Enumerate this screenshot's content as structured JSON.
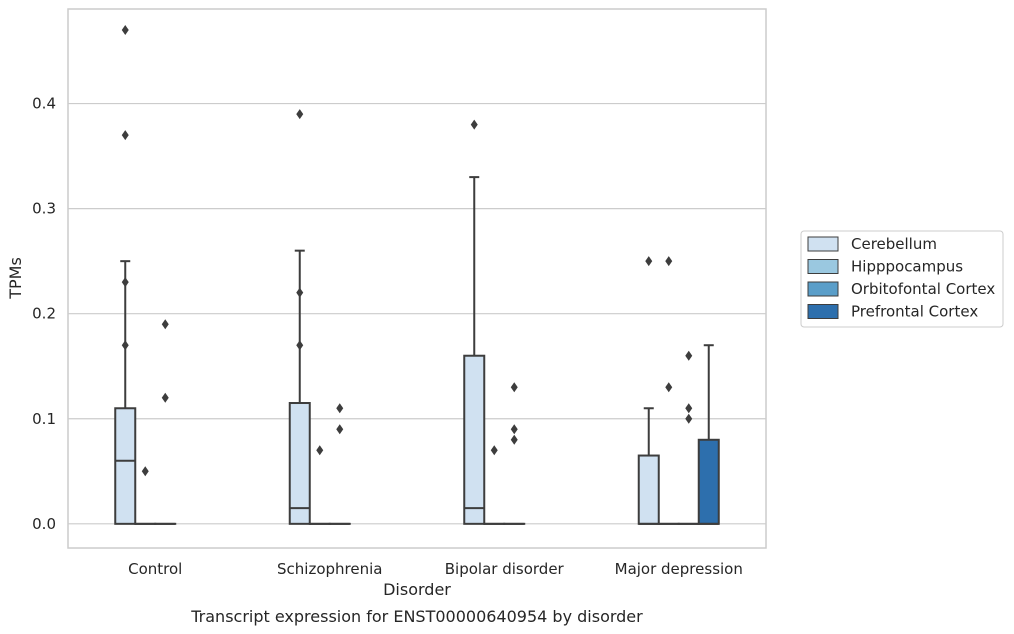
{
  "caption": "Transcript expression for ENST00000640954 by disorder",
  "chart_data": {
    "type": "boxplot",
    "xlabel": "Disorder",
    "ylabel": "TPMs",
    "categories": [
      "Control",
      "Schizophrenia",
      "Bipolar disorder",
      "Major depression"
    ],
    "ylim": [
      -0.023,
      0.49
    ],
    "yticks": [
      0.0,
      0.1,
      0.2,
      0.3,
      0.4
    ],
    "ytick_labels": [
      "0.0",
      "0.1",
      "0.2",
      "0.3",
      "0.4"
    ],
    "grid": "horizontal",
    "legend_position": "right",
    "series": [
      {
        "name": "Cerebellum",
        "color": "#d0e1f1",
        "boxes": [
          {
            "q1": 0,
            "median": 0.06,
            "q3": 0.11,
            "whisker_low": 0,
            "whisker_high": 0.25,
            "outliers": [
              0.47,
              0.37,
              0.23,
              0.17
            ]
          },
          {
            "q1": 0,
            "median": 0.015,
            "q3": 0.115,
            "whisker_low": 0,
            "whisker_high": 0.26,
            "outliers": [
              0.39,
              0.22,
              0.17
            ]
          },
          {
            "q1": 0,
            "median": 0.015,
            "q3": 0.16,
            "whisker_low": 0,
            "whisker_high": 0.33,
            "outliers": [
              0.38
            ]
          },
          {
            "q1": 0,
            "median": 0,
            "q3": 0.065,
            "whisker_low": 0,
            "whisker_high": 0.11,
            "outliers": [
              0.25
            ]
          }
        ]
      },
      {
        "name": "Hipppocampus",
        "color": "#9ac8e0",
        "boxes": [
          {
            "q1": 0,
            "median": 0,
            "q3": 0,
            "whisker_low": 0,
            "whisker_high": 0,
            "outliers": [
              0.05
            ]
          },
          {
            "q1": 0,
            "median": 0,
            "q3": 0,
            "whisker_low": 0,
            "whisker_high": 0,
            "outliers": [
              0.07
            ]
          },
          {
            "q1": 0,
            "median": 0,
            "q3": 0,
            "whisker_low": 0,
            "whisker_high": 0,
            "outliers": [
              0.07
            ]
          },
          {
            "q1": 0,
            "median": 0,
            "q3": 0,
            "whisker_low": 0,
            "whisker_high": 0,
            "outliers": [
              0.25,
              0.13
            ]
          }
        ]
      },
      {
        "name": "Orbitofontal Cortex",
        "color": "#5a9ec9",
        "boxes": [
          {
            "q1": 0,
            "median": 0,
            "q3": 0,
            "whisker_low": 0,
            "whisker_high": 0,
            "outliers": [
              0.19,
              0.12
            ]
          },
          {
            "q1": 0,
            "median": 0,
            "q3": 0,
            "whisker_low": 0,
            "whisker_high": 0,
            "outliers": [
              0.11,
              0.09
            ]
          },
          {
            "q1": 0,
            "median": 0,
            "q3": 0,
            "whisker_low": 0,
            "whisker_high": 0,
            "outliers": [
              0.13,
              0.09,
              0.08
            ]
          },
          {
            "q1": 0,
            "median": 0,
            "q3": 0,
            "whisker_low": 0,
            "whisker_high": 0,
            "outliers": [
              0.16,
              0.11,
              0.1
            ]
          }
        ]
      },
      {
        "name": "Prefrontal Cortex",
        "color": "#2d6fad",
        "boxes": [
          null,
          null,
          null,
          {
            "q1": 0,
            "median": 0,
            "q3": 0.08,
            "whisker_low": 0,
            "whisker_high": 0.17,
            "outliers": []
          }
        ]
      }
    ]
  }
}
